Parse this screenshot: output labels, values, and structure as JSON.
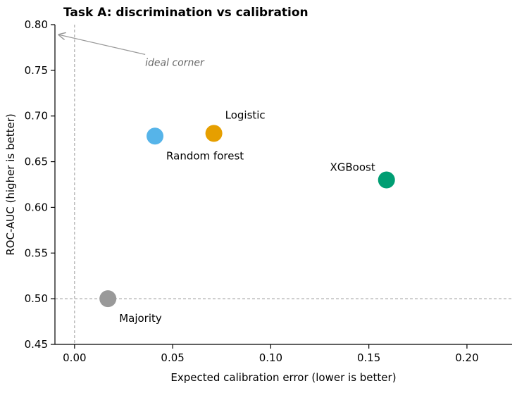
{
  "chart_data": {
    "type": "scatter",
    "title": "Task A: discrimination vs calibration",
    "xlabel": "Expected calibration error (lower is better)",
    "ylabel": "ROC-AUC (higher is better)",
    "xlim": [
      -0.01,
      0.223
    ],
    "ylim": [
      0.45,
      0.8
    ],
    "xticks": [
      0.0,
      0.05,
      0.1,
      0.15,
      0.2
    ],
    "xtick_labels": [
      "0.00",
      "0.05",
      "0.10",
      "0.15",
      "0.20"
    ],
    "yticks": [
      0.45,
      0.5,
      0.55,
      0.6,
      0.65,
      0.7,
      0.75,
      0.8
    ],
    "ytick_labels": [
      "0.45",
      "0.50",
      "0.55",
      "0.60",
      "0.65",
      "0.70",
      "0.75",
      "0.80"
    ],
    "grid": false,
    "points": [
      {
        "name": "Logistic",
        "x": 0.071,
        "y": 0.681,
        "color": "#E69F00",
        "label_pos": "upper-right"
      },
      {
        "name": "Random forest",
        "x": 0.041,
        "y": 0.678,
        "color": "#56B4E9",
        "label_pos": "lower-right"
      },
      {
        "name": "XGBoost",
        "x": 0.159,
        "y": 0.63,
        "color": "#009E73",
        "label_pos": "upper-left"
      },
      {
        "name": "Majority",
        "x": 0.017,
        "y": 0.5,
        "color": "#999999",
        "label_pos": "lower-right"
      }
    ],
    "reference_lines": [
      {
        "orientation": "vertical",
        "x": 0.0,
        "style": "dashed",
        "color": "#999999"
      },
      {
        "orientation": "horizontal",
        "y": 0.5,
        "style": "dashed",
        "color": "#999999"
      }
    ],
    "annotation": {
      "text": "ideal corner",
      "text_x": 0.036,
      "text_y": 0.755,
      "arrow_to_x": -0.008,
      "arrow_to_y": 0.789,
      "color": "#999999"
    }
  }
}
